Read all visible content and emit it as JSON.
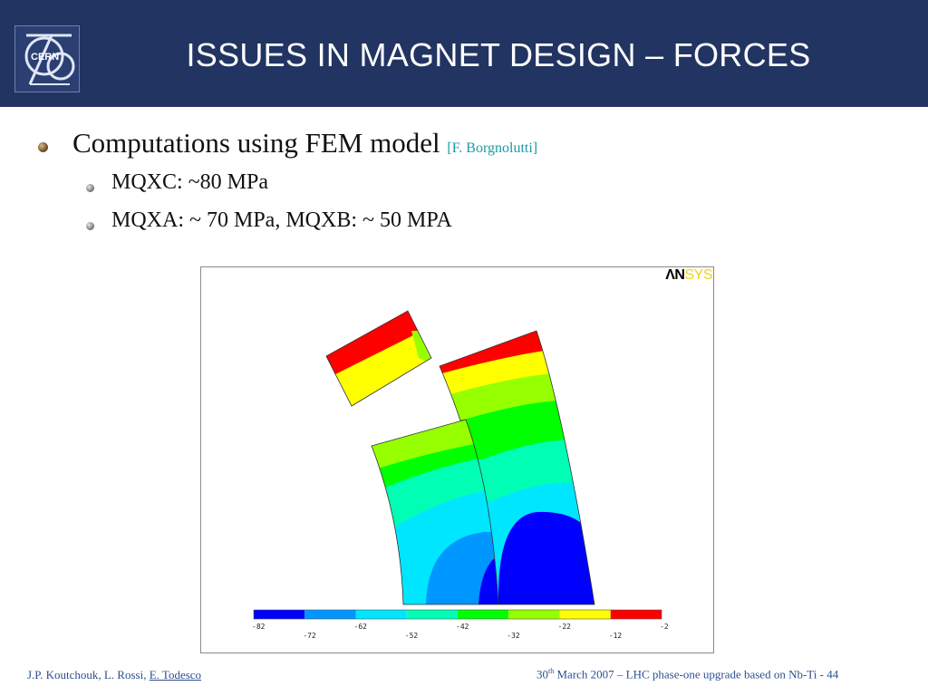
{
  "header": {
    "title": "ISSUES IN MAGNET DESIGN – FORCES",
    "logo_text": "CERN",
    "logo_icon": "cern-logo"
  },
  "content": {
    "bullet1": {
      "text": "Computations using FEM model",
      "citation": "[F. Borgnolutti]"
    },
    "sub_bullets": [
      {
        "text": "MQXC: ~80 MPa"
      },
      {
        "text": "MQXA: ~ 70 MPa, MQXB: ~ 50 MPA"
      }
    ]
  },
  "figure": {
    "ansys_logo_an": "ΛN",
    "ansys_logo_sys": "SYS",
    "colorbar": {
      "colors": [
        "#0000ff",
        "#0096ff",
        "#00e6ff",
        "#00ffb4",
        "#00ff00",
        "#96ff00",
        "#ffff00",
        "#ff0000"
      ],
      "labels_top": [
        "-82",
        "-62",
        "-42",
        "-22",
        "-2"
      ],
      "labels_bottom": [
        "-72",
        "-52",
        "-32",
        "-12"
      ]
    }
  },
  "footer": {
    "authors": "J.P. Koutchouk, L. Rossi, ",
    "authors_underlined": "E. Todesco",
    "date_day": "30",
    "date_sup": "th",
    "date_rest": " March 2007 – LHC phase-one upgrade based on Nb-Ti  - 44"
  }
}
